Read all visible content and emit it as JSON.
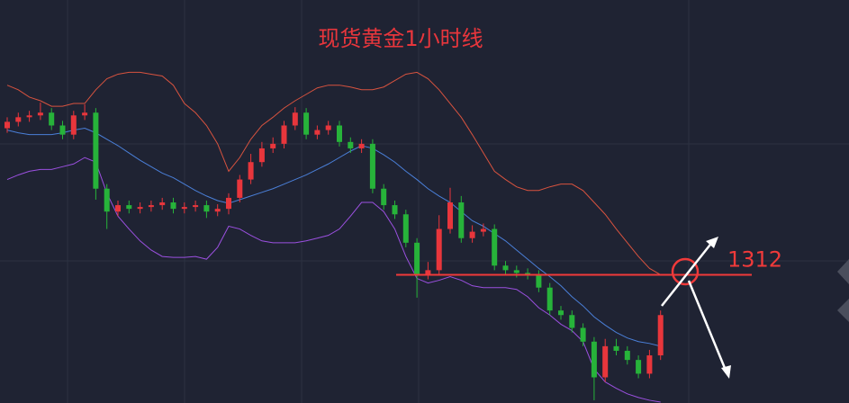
{
  "chart_data": {
    "type": "candlestick",
    "title": "现货黄金1小时线",
    "open": [
      1328.0,
      1328.7,
      1329.2,
      1329.4,
      1329.7,
      1328.3,
      1327.3,
      1329.4,
      1329.7,
      1321.4,
      1318.9,
      1319.6,
      1319.2,
      1319.4,
      1319.6,
      1319.9,
      1319.2,
      1319.4,
      1319.6,
      1318.9,
      1319.2,
      1320.4,
      1322.4,
      1324.3,
      1325.8,
      1326.3,
      1328.3,
      1329.7,
      1327.3,
      1327.8,
      1328.3,
      1326.5,
      1325.8,
      1326.3,
      1321.4,
      1319.6,
      1318.6,
      1315.5,
      1312.0,
      1312.5,
      1317.0,
      1319.9,
      1316.0,
      1316.7,
      1317.0,
      1313.0,
      1312.5,
      1312.2,
      1312.0,
      1310.6,
      1308.1,
      1307.6,
      1306.2,
      1304.7,
      1300.8,
      1304.2,
      1303.7,
      1302.7,
      1301.2,
      1303.2
    ],
    "high": [
      1329.2,
      1329.7,
      1329.9,
      1330.8,
      1330.2,
      1328.8,
      1329.9,
      1330.6,
      1330.2,
      1321.9,
      1320.1,
      1320.1,
      1319.9,
      1320.1,
      1320.4,
      1320.4,
      1319.9,
      1320.1,
      1320.1,
      1319.7,
      1320.9,
      1322.9,
      1325.2,
      1326.5,
      1327.0,
      1328.8,
      1330.3,
      1330.2,
      1328.3,
      1328.8,
      1328.8,
      1327.0,
      1326.8,
      1326.8,
      1321.9,
      1320.1,
      1319.1,
      1316.0,
      1313.4,
      1318.5,
      1321.5,
      1320.6,
      1317.4,
      1317.6,
      1317.5,
      1313.5,
      1313.0,
      1312.7,
      1312.5,
      1311.1,
      1308.6,
      1308.1,
      1306.7,
      1305.2,
      1305.0,
      1305.0,
      1304.2,
      1303.2,
      1303.8,
      1308.1
    ],
    "low": [
      1327.5,
      1328.2,
      1328.7,
      1328.9,
      1327.8,
      1326.8,
      1326.8,
      1328.9,
      1320.2,
      1317.0,
      1318.4,
      1318.7,
      1318.7,
      1318.9,
      1319.1,
      1318.7,
      1318.7,
      1318.9,
      1318.2,
      1318.4,
      1318.6,
      1319.9,
      1321.9,
      1323.8,
      1325.3,
      1325.8,
      1327.8,
      1326.8,
      1326.8,
      1327.3,
      1326.0,
      1325.3,
      1325.3,
      1320.9,
      1319.1,
      1318.1,
      1315.0,
      1309.5,
      1311.5,
      1312.0,
      1316.5,
      1315.5,
      1315.5,
      1316.2,
      1312.5,
      1312.0,
      1311.7,
      1311.5,
      1310.1,
      1307.6,
      1307.1,
      1305.7,
      1304.2,
      1298.3,
      1300.3,
      1303.2,
      1302.2,
      1300.7,
      1300.7,
      1302.7
    ],
    "close": [
      1328.7,
      1329.2,
      1329.4,
      1329.7,
      1328.3,
      1327.3,
      1329.4,
      1329.7,
      1321.4,
      1318.9,
      1319.6,
      1319.2,
      1319.4,
      1319.6,
      1319.9,
      1319.2,
      1319.4,
      1319.6,
      1318.9,
      1319.2,
      1320.4,
      1322.4,
      1324.3,
      1325.8,
      1326.3,
      1328.3,
      1329.7,
      1327.3,
      1327.8,
      1328.3,
      1326.5,
      1325.8,
      1326.3,
      1321.4,
      1319.6,
      1318.6,
      1315.5,
      1312.0,
      1312.5,
      1317.0,
      1319.9,
      1316.0,
      1316.7,
      1317.0,
      1313.0,
      1312.5,
      1312.2,
      1312.0,
      1310.6,
      1308.1,
      1307.6,
      1306.2,
      1304.7,
      1300.8,
      1304.2,
      1303.7,
      1302.7,
      1301.2,
      1303.2,
      1307.6
    ],
    "up_color": "#e8363c",
    "down_color": "#27b33a",
    "bands": [
      {
        "color": "#d8533f",
        "values": [
          1332.7,
          1332.2,
          1331.4,
          1331.0,
          1330.4,
          1330.4,
          1330.7,
          1330.7,
          1332.2,
          1333.4,
          1333.9,
          1334.1,
          1334.1,
          1333.9,
          1333.7,
          1332.7,
          1330.7,
          1329.7,
          1328.3,
          1326.3,
          1323.3,
          1324.8,
          1326.8,
          1328.3,
          1329.2,
          1330.2,
          1331.0,
          1331.7,
          1332.4,
          1332.7,
          1332.7,
          1332.5,
          1332.2,
          1332.2,
          1332.5,
          1333.2,
          1333.9,
          1334.1,
          1333.4,
          1332.2,
          1330.7,
          1329.2,
          1327.3,
          1325.3,
          1323.3,
          1322.4,
          1321.6,
          1321.2,
          1321.2,
          1321.6,
          1321.9,
          1321.9,
          1321.2,
          1319.9,
          1318.6,
          1317.0,
          1315.5,
          1314.0,
          1312.7,
          1312.0
        ]
      },
      {
        "color": "#4a7fd8",
        "values": [
          1327.8,
          1327.5,
          1327.3,
          1327.3,
          1327.3,
          1327.5,
          1327.8,
          1328.0,
          1327.5,
          1326.8,
          1326.1,
          1325.3,
          1324.5,
          1323.8,
          1323.1,
          1322.6,
          1321.9,
          1321.2,
          1320.6,
          1320.1,
          1319.8,
          1320.2,
          1320.6,
          1321.0,
          1321.4,
          1321.9,
          1322.4,
          1322.9,
          1323.5,
          1324.1,
          1324.8,
          1325.5,
          1326.1,
          1325.8,
          1325.1,
          1324.3,
          1323.3,
          1322.4,
          1321.4,
          1320.6,
          1319.9,
          1318.9,
          1317.9,
          1317.3,
          1316.5,
          1315.7,
          1314.7,
          1313.7,
          1312.7,
          1311.8,
          1310.8,
          1309.6,
          1308.6,
          1307.4,
          1306.5,
          1305.7,
          1305.1,
          1304.7,
          1304.5,
          1304.2
        ]
      },
      {
        "color": "#9b50e0",
        "values": [
          1322.4,
          1322.9,
          1323.3,
          1323.5,
          1323.5,
          1323.8,
          1324.1,
          1324.8,
          1324.3,
          1320.9,
          1318.4,
          1317.0,
          1315.7,
          1314.7,
          1314.0,
          1313.9,
          1313.9,
          1314.0,
          1313.7,
          1315.0,
          1317.3,
          1317.0,
          1316.3,
          1315.7,
          1315.5,
          1315.5,
          1315.5,
          1315.7,
          1316.0,
          1316.3,
          1317.0,
          1318.4,
          1319.9,
          1319.9,
          1318.9,
          1317.0,
          1314.0,
          1311.6,
          1311.1,
          1311.4,
          1311.8,
          1311.4,
          1310.8,
          1310.6,
          1310.6,
          1310.6,
          1310.4,
          1309.6,
          1308.4,
          1307.6,
          1306.6,
          1305.9,
          1304.7,
          1301.7,
          1300.3,
          1299.6,
          1299.0,
          1298.6,
          1298.3,
          1298.1
        ]
      }
    ],
    "reference_line": 1312,
    "reference_color": "#f03a3a",
    "ylim": [
      1298,
      1342
    ],
    "grid": true
  }
}
